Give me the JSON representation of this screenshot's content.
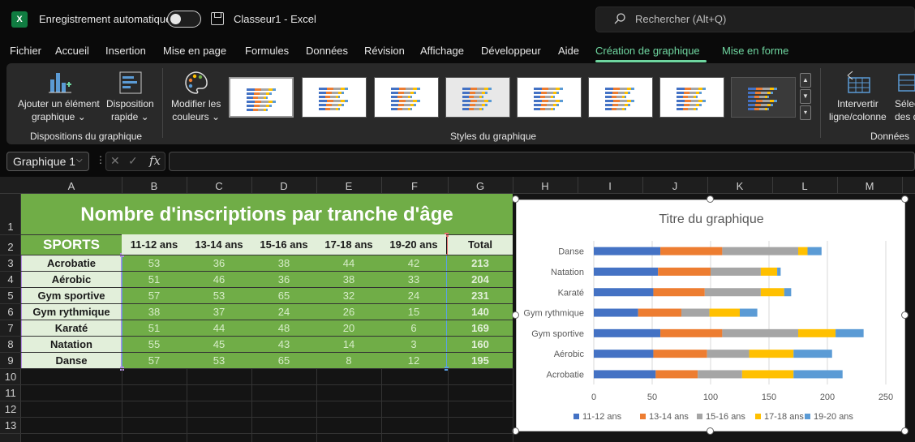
{
  "titlebar": {
    "autosave_label": "Enregistrement automatique",
    "doc_title": "Classeur1  -  Excel",
    "search_placeholder": "Rechercher (Alt+Q)"
  },
  "menu": [
    "Fichier",
    "Accueil",
    "Insertion",
    "Mise en page",
    "Formules",
    "Données",
    "Révision",
    "Affichage",
    "Développeur",
    "Aide",
    "Création de graphique",
    "Mise en forme"
  ],
  "ribbon": {
    "add_element": [
      "Ajouter un élément",
      "graphique"
    ],
    "quick_layout": [
      "Disposition",
      "rapide"
    ],
    "change_colors": [
      "Modifier les",
      "couleurs"
    ],
    "switch_rowcol": [
      "Intervertir",
      "ligne/colonne"
    ],
    "select_data": [
      "Sélec",
      "des d"
    ],
    "group_layouts": "Dispositions du graphique",
    "group_styles": "Styles du graphique",
    "group_data": "Données"
  },
  "formula_bar": {
    "name_box": "Graphique 1",
    "fx": "fx"
  },
  "columns": [
    "A",
    "B",
    "C",
    "D",
    "E",
    "F",
    "G",
    "H",
    "I",
    "J",
    "K",
    "L",
    "M"
  ],
  "rows": [
    "1",
    "2",
    "3",
    "4",
    "5",
    "6",
    "7",
    "8",
    "9",
    "10",
    "11",
    "12",
    "13"
  ],
  "table": {
    "title": "Nombre d'inscriptions par tranche d'âge",
    "sports_header": "SPORTS",
    "age_headers": [
      "11-12 ans",
      "13-14 ans",
      "15-16 ans",
      "17-18 ans",
      "19-20 ans"
    ],
    "total_header": "Total",
    "rows": [
      {
        "sport": "Acrobatie",
        "values": [
          "53",
          "36",
          "38",
          "44",
          "42"
        ],
        "total": "213"
      },
      {
        "sport": "Aérobic",
        "values": [
          "51",
          "46",
          "36",
          "38",
          "33"
        ],
        "total": "204"
      },
      {
        "sport": "Gym sportive",
        "values": [
          "57",
          "53",
          "65",
          "32",
          "24"
        ],
        "total": "231"
      },
      {
        "sport": "Gym rythmique",
        "values": [
          "38",
          "37",
          "24",
          "26",
          "15"
        ],
        "total": "140"
      },
      {
        "sport": "Karaté",
        "values": [
          "51",
          "44",
          "48",
          "20",
          "6"
        ],
        "total": "169"
      },
      {
        "sport": "Natation",
        "values": [
          "55",
          "45",
          "43",
          "14",
          "3"
        ],
        "total": "160"
      },
      {
        "sport": "Danse",
        "values": [
          "57",
          "53",
          "65",
          "8",
          "12"
        ],
        "total": "195"
      }
    ]
  },
  "colors": {
    "green": "#70ad47",
    "light_green": "#e2efda",
    "accent": "#6fd6a0"
  },
  "chart_data": {
    "type": "bar",
    "orientation": "horizontal",
    "stacked": true,
    "title": "Titre du graphique",
    "categories": [
      "Danse",
      "Natation",
      "Karaté",
      "Gym rythmique",
      "Gym sportive",
      "Aérobic",
      "Acrobatie"
    ],
    "series": [
      {
        "name": "11-12 ans",
        "color": "#4472c4",
        "values": [
          57,
          55,
          51,
          38,
          57,
          51,
          53
        ]
      },
      {
        "name": "13-14 ans",
        "color": "#ed7d31",
        "values": [
          53,
          45,
          44,
          37,
          53,
          46,
          36
        ]
      },
      {
        "name": "15-16 ans",
        "color": "#a5a5a5",
        "values": [
          65,
          43,
          48,
          24,
          65,
          36,
          38
        ]
      },
      {
        "name": "17-18 ans",
        "color": "#ffc000",
        "values": [
          8,
          14,
          20,
          26,
          32,
          38,
          44
        ]
      },
      {
        "name": "19-20 ans",
        "color": "#5b9bd5",
        "values": [
          12,
          3,
          6,
          15,
          24,
          33,
          42
        ]
      }
    ],
    "xlim": [
      0,
      250
    ],
    "xticks": [
      "0",
      "50",
      "100",
      "150",
      "200",
      "250"
    ],
    "legend": "bottom",
    "grid": true
  }
}
